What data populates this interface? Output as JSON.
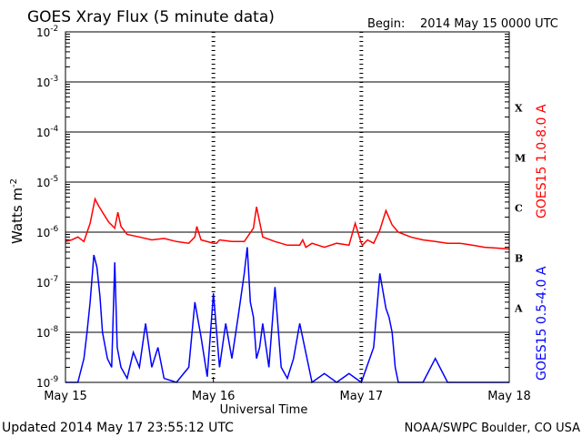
{
  "title": "GOES Xray Flux (5 minute data)",
  "begin_label": "Begin:",
  "begin_value": "2014 May 15 0000 UTC",
  "footer_updated": "Updated 2014 May 17 23:55:12 UTC",
  "footer_source": "NOAA/SWPC Boulder, CO USA",
  "colors": {
    "long_channel": "#ff0000",
    "short_channel": "#0000ff",
    "axis": "#000000"
  },
  "chart_data": {
    "type": "line",
    "scale": "log",
    "xlabel": "Universal Time",
    "ylabel_base": "Watts m",
    "ylabel_exp": "-2",
    "x_ticks": [
      "May 15",
      "May 16",
      "May 17",
      "May 18"
    ],
    "x_range_hours": [
      0,
      72
    ],
    "ylim": [
      1e-09,
      0.01
    ],
    "y_ticks": [
      {
        "base": "10",
        "exp": "-9",
        "value": 1e-09
      },
      {
        "base": "10",
        "exp": "-8",
        "value": 1e-08
      },
      {
        "base": "10",
        "exp": "-7",
        "value": 1e-07
      },
      {
        "base": "10",
        "exp": "-6",
        "value": 1e-06
      },
      {
        "base": "10",
        "exp": "-5",
        "value": 1e-05
      },
      {
        "base": "10",
        "exp": "-4",
        "value": 0.0001
      },
      {
        "base": "10",
        "exp": "-3",
        "value": 0.001
      },
      {
        "base": "10",
        "exp": "-2",
        "value": 0.01
      }
    ],
    "flare_classes": [
      {
        "label": "A",
        "value": 1e-08
      },
      {
        "label": "B",
        "value": 1e-07
      },
      {
        "label": "C",
        "value": 1e-06
      },
      {
        "label": "M",
        "value": 1e-05
      },
      {
        "label": "X",
        "value": 0.0001
      }
    ],
    "grid": "horizontal lines at each decade from 1e-8 to 1e-3",
    "series": [
      {
        "name": "GOES15 1.0-8.0 A",
        "color": "#ff0000",
        "x_hours": [
          0,
          1,
          2,
          3,
          4,
          4.8,
          5.3,
          6,
          7,
          8,
          8.5,
          9,
          10,
          12,
          14,
          16,
          18,
          20,
          21,
          21.3,
          22,
          24,
          24.5,
          25,
          27,
          29,
          30.5,
          31,
          32,
          34,
          36,
          38,
          38.5,
          39,
          40,
          42,
          44,
          46,
          47,
          48,
          48.2,
          49,
          50,
          51,
          52,
          53,
          54,
          56,
          58,
          60,
          62,
          64,
          66,
          68,
          70,
          72
        ],
        "values": [
          6.5e-07,
          7e-07,
          8e-07,
          6.5e-07,
          1.5e-06,
          4.6e-06,
          3.5e-06,
          2.5e-06,
          1.6e-06,
          1.2e-06,
          2.5e-06,
          1.3e-06,
          9e-07,
          8e-07,
          7e-07,
          7.5e-07,
          6.5e-07,
          6e-07,
          8e-07,
          1.3e-06,
          7e-07,
          6e-07,
          6e-07,
          7e-07,
          6.5e-07,
          6.5e-07,
          1.2e-06,
          3.2e-06,
          8e-07,
          6.5e-07,
          5.5e-07,
          5.5e-07,
          7e-07,
          5e-07,
          6e-07,
          5e-07,
          6e-07,
          5.5e-07,
          1.5e-06,
          6e-07,
          5.5e-07,
          7e-07,
          6e-07,
          1.1e-06,
          2.7e-06,
          1.4e-06,
          1e-06,
          8e-07,
          7e-07,
          6.5e-07,
          6e-07,
          6e-07,
          5.5e-07,
          5e-07,
          4.8e-07,
          4.6e-07
        ]
      },
      {
        "name": "GOES15 0.5-4.0 A",
        "color": "#0000ff",
        "x_hours": [
          0,
          2,
          3,
          3.5,
          4,
          4.6,
          5.1,
          5.6,
          6,
          6.8,
          7.5,
          8,
          8.4,
          9,
          10,
          11,
          12,
          13,
          14,
          15,
          16,
          18,
          20,
          21,
          22,
          23,
          24,
          25,
          26,
          27,
          28,
          29,
          29.5,
          30,
          30.5,
          31,
          31.5,
          32,
          33,
          34,
          35,
          36,
          37,
          38,
          40,
          42,
          44,
          46,
          48,
          50,
          51,
          52,
          52.5,
          53,
          53.5,
          54,
          55,
          56,
          58,
          60,
          62,
          64,
          66,
          68,
          70,
          72
        ],
        "values": [
          1e-09,
          1e-09,
          3e-09,
          1e-08,
          4e-08,
          3.5e-07,
          2e-07,
          5e-08,
          1e-08,
          3e-09,
          2e-09,
          2.5e-07,
          5e-09,
          2e-09,
          1.2e-09,
          4e-09,
          2e-09,
          1.5e-08,
          2e-09,
          5e-09,
          1.2e-09,
          1e-09,
          2e-09,
          4e-08,
          8e-09,
          1.3e-09,
          6e-08,
          2e-09,
          1.5e-08,
          3e-09,
          2e-08,
          1.5e-07,
          5e-07,
          4e-08,
          2e-08,
          3e-09,
          5e-09,
          1.5e-08,
          2e-09,
          8e-08,
          2e-09,
          1.2e-09,
          3e-09,
          1.5e-08,
          1e-09,
          1.5e-09,
          1e-09,
          1.5e-09,
          1e-09,
          5e-09,
          1.5e-07,
          3e-08,
          2e-08,
          1e-08,
          2e-09,
          1e-09,
          1e-09,
          1e-09,
          1e-09,
          3e-09,
          1e-09,
          1e-09,
          1e-09,
          1e-09,
          1e-09,
          1e-09
        ]
      }
    ]
  }
}
